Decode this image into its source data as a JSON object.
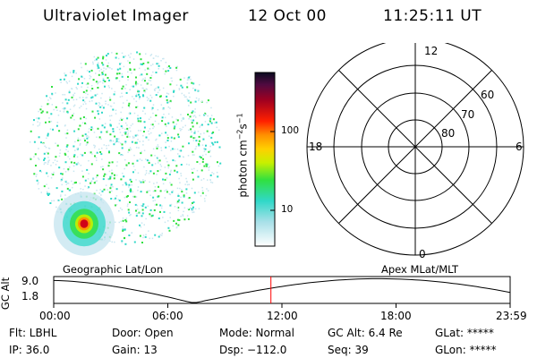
{
  "header": {
    "title": "Ultraviolet Imager",
    "date": "12 Oct 00",
    "time": "11:25:11 UT"
  },
  "colorbar": {
    "units_label": "photon cm",
    "units_sup1": "−2",
    "units_mid": "s",
    "units_sup2": "−1",
    "ticks": [
      "100",
      "10"
    ]
  },
  "polar": {
    "labels": {
      "top": "12",
      "bottom": "0",
      "left": "18",
      "right": "6",
      "lat60": "60",
      "lat70": "70",
      "lat80": "80"
    }
  },
  "timeline": {
    "left_title": "Geographic Lat/Lon",
    "right_title": "Apex MLat/MLT",
    "y_label": "GC Alt",
    "y_max": "9.0",
    "y_min": "1.8",
    "x_ticks": [
      "00:00",
      "06:00",
      "12:00",
      "18:00",
      "23:59"
    ],
    "marker_time_hours": 11.42
  },
  "info": {
    "flt": "Flt: LBHL",
    "ip": "IP: 36.0",
    "door": "Door: Open",
    "gain": "Gain: 13",
    "mode": "Mode: Normal",
    "dsp": "Dsp: −112.0",
    "gcalt": "GC Alt: 6.4 Re",
    "seq": "Seq: 39",
    "glat": "GLat: *****",
    "glon": "GLon: *****"
  },
  "colors": {
    "marker": "#ff0000",
    "noise_light": "#c8e6f0",
    "noise_cyan": "#30d8c8",
    "noise_green": "#30e040",
    "spot_core": "#d00018"
  }
}
